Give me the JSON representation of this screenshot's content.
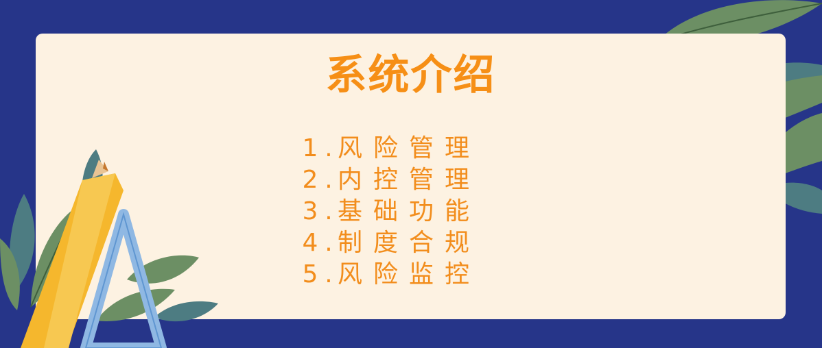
{
  "title": "系统介绍",
  "menu": [
    {
      "number": "1",
      "separator": ".",
      "label": "风险管理"
    },
    {
      "number": "2",
      "separator": ".",
      "label": "内控管理"
    },
    {
      "number": "3",
      "separator": ".",
      "label": "基础功能"
    },
    {
      "number": "4",
      "separator": ".",
      "label": "制度合规"
    },
    {
      "number": "5",
      "separator": ".",
      "label": "风险监控"
    }
  ],
  "colors": {
    "background": "#263589",
    "card": "#fdf2e2",
    "accent": "#f68f16",
    "leaf_green": "#6c8f64",
    "leaf_teal": "#4d7c82"
  },
  "decorations": {
    "right": "leaves-illustration",
    "left": "pencil-and-triangle-ruler-illustration"
  }
}
